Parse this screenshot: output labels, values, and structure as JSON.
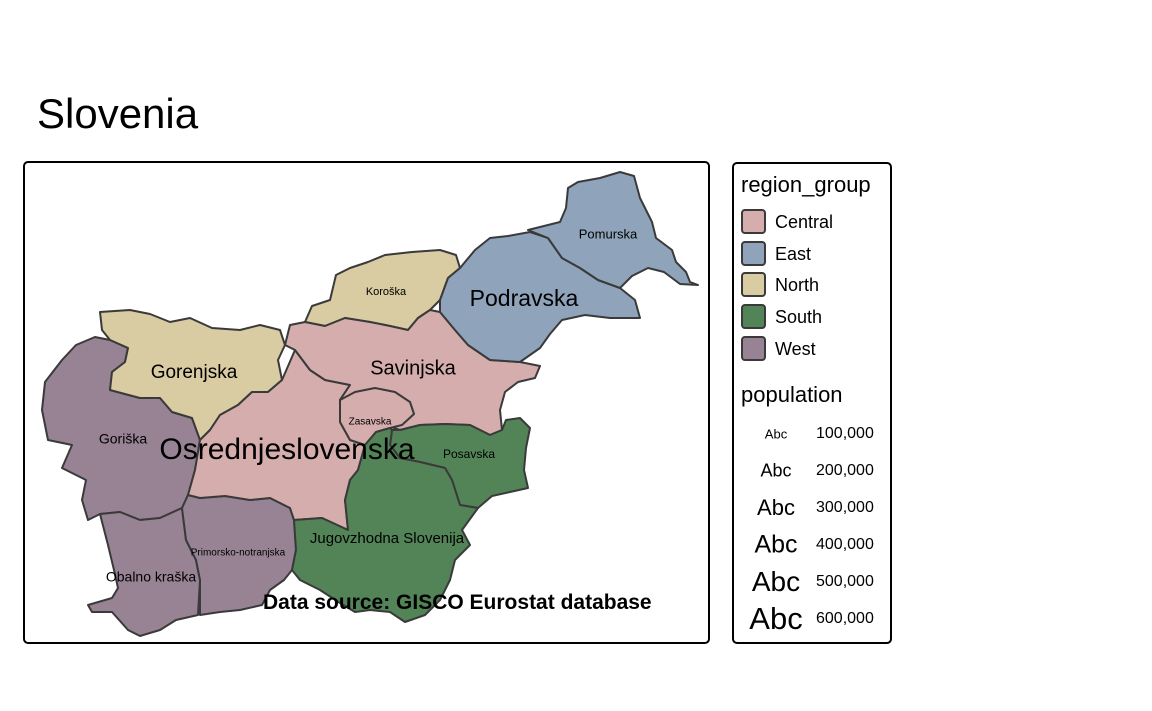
{
  "map": {
    "title": "Slovenia",
    "caption": "Data source: GISCO Eurostat database"
  },
  "legend": {
    "group_title": "region_group",
    "groups": [
      {
        "label": "Central",
        "color": "#d5adad"
      },
      {
        "label": "East",
        "color": "#8fa4ba"
      },
      {
        "label": "North",
        "color": "#d9cba2"
      },
      {
        "label": "South",
        "color": "#528457"
      },
      {
        "label": "West",
        "color": "#988394"
      }
    ],
    "size_title": "population",
    "sample_text": "Abc",
    "sizes": [
      "100,000",
      "200,000",
      "300,000",
      "400,000",
      "500,000",
      "600,000"
    ]
  },
  "regions": [
    {
      "name": "Pomurska",
      "group": "East"
    },
    {
      "name": "Podravska",
      "group": "East"
    },
    {
      "name": "Koroška",
      "group": "North"
    },
    {
      "name": "Savinjska",
      "group": "Central"
    },
    {
      "name": "Zasavska",
      "group": "Central"
    },
    {
      "name": "Posavska",
      "group": "South"
    },
    {
      "name": "Jugovzhodna Slovenija",
      "group": "South"
    },
    {
      "name": "Osrednjeslovenska",
      "group": "Central"
    },
    {
      "name": "Gorenjska",
      "group": "North"
    },
    {
      "name": "Primorsko-notranjska",
      "group": "West"
    },
    {
      "name": "Goriška",
      "group": "West"
    },
    {
      "name": "Obalno kraška",
      "group": "West"
    }
  ]
}
